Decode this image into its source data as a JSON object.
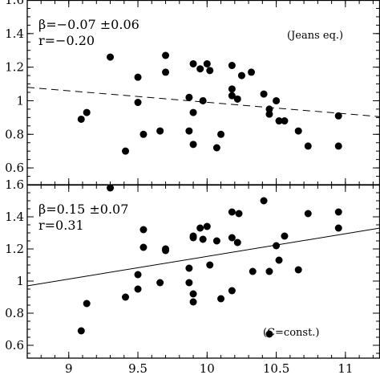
{
  "chart_data": [
    {
      "type": "scatter",
      "panel": "top",
      "annotations": {
        "beta": "β=−0.07 ±0.06",
        "r": "r=−0.20",
        "label": "(Jeans eq.)"
      },
      "xlim": [
        8.7,
        11.25
      ],
      "ylim": [
        0.5,
        1.6
      ],
      "yticks": [
        "0.6",
        "0.8",
        "1",
        "1.2",
        "1.4",
        "1.6"
      ],
      "xticks": [
        9,
        9.5,
        10,
        10.5,
        11
      ],
      "grid": false,
      "fit_line": {
        "style": "dashed",
        "points": [
          [
            8.7,
            1.08
          ],
          [
            11.25,
            0.905
          ]
        ]
      },
      "points": [
        [
          9.09,
          0.89
        ],
        [
          9.13,
          0.93
        ],
        [
          9.3,
          1.26
        ],
        [
          9.41,
          0.7
        ],
        [
          9.5,
          0.99
        ],
        [
          9.5,
          1.14
        ],
        [
          9.54,
          0.8
        ],
        [
          9.66,
          0.82
        ],
        [
          9.7,
          1.17
        ],
        [
          9.7,
          1.27
        ],
        [
          9.87,
          1.02
        ],
        [
          9.87,
          0.82
        ],
        [
          9.9,
          0.93
        ],
        [
          9.9,
          0.74
        ],
        [
          9.9,
          1.22
        ],
        [
          9.95,
          1.19
        ],
        [
          9.97,
          1.0
        ],
        [
          10.0,
          1.22
        ],
        [
          10.02,
          1.18
        ],
        [
          10.07,
          0.72
        ],
        [
          10.1,
          0.8
        ],
        [
          10.18,
          1.07
        ],
        [
          10.18,
          1.21
        ],
        [
          10.18,
          1.03
        ],
        [
          10.22,
          1.01
        ],
        [
          10.25,
          1.15
        ],
        [
          10.32,
          1.17
        ],
        [
          10.41,
          1.04
        ],
        [
          10.45,
          0.95
        ],
        [
          10.45,
          0.92
        ],
        [
          10.5,
          1.0
        ],
        [
          10.52,
          0.88
        ],
        [
          10.56,
          0.88
        ],
        [
          10.66,
          0.82
        ],
        [
          10.73,
          0.73
        ],
        [
          10.95,
          0.91
        ],
        [
          10.95,
          0.73
        ]
      ]
    },
    {
      "type": "scatter",
      "panel": "bottom",
      "annotations": {
        "beta": "β=0.15 ±0.07",
        "r": "r=0.31",
        "label": "(C=const.)"
      },
      "xlim": [
        8.7,
        11.25
      ],
      "ylim": [
        0.52,
        1.6
      ],
      "yticks": [
        "0.6",
        "0.8",
        "1",
        "1.2",
        "1.4",
        "1.6"
      ],
      "xtick_labels": [
        "9",
        "9.5",
        "10",
        "10.5",
        "11"
      ],
      "xticks": [
        9,
        9.5,
        10,
        10.5,
        11
      ],
      "grid": false,
      "fit_line": {
        "style": "solid",
        "points": [
          [
            8.7,
            0.97
          ],
          [
            11.25,
            1.33
          ]
        ]
      },
      "points": [
        [
          9.09,
          0.69
        ],
        [
          9.13,
          0.86
        ],
        [
          9.3,
          1.58
        ],
        [
          9.41,
          0.9
        ],
        [
          9.5,
          0.95
        ],
        [
          9.5,
          1.04
        ],
        [
          9.54,
          1.32
        ],
        [
          9.54,
          1.21
        ],
        [
          9.66,
          0.99
        ],
        [
          9.7,
          1.19
        ],
        [
          9.7,
          1.2
        ],
        [
          9.87,
          1.08
        ],
        [
          9.87,
          0.99
        ],
        [
          9.9,
          0.92
        ],
        [
          9.9,
          0.87
        ],
        [
          9.9,
          1.28
        ],
        [
          9.9,
          1.27
        ],
        [
          9.95,
          1.33
        ],
        [
          9.97,
          1.26
        ],
        [
          10.0,
          1.34
        ],
        [
          10.02,
          1.1
        ],
        [
          10.07,
          1.25
        ],
        [
          10.1,
          0.89
        ],
        [
          10.18,
          1.43
        ],
        [
          10.18,
          1.27
        ],
        [
          10.18,
          0.94
        ],
        [
          10.22,
          1.24
        ],
        [
          10.23,
          1.42
        ],
        [
          10.33,
          1.06
        ],
        [
          10.41,
          1.5
        ],
        [
          10.45,
          1.06
        ],
        [
          10.5,
          1.22
        ],
        [
          10.52,
          1.13
        ],
        [
          10.56,
          1.28
        ],
        [
          10.45,
          0.67
        ],
        [
          10.66,
          1.07
        ],
        [
          10.73,
          1.42
        ],
        [
          10.95,
          1.43
        ],
        [
          10.95,
          1.33
        ]
      ]
    }
  ]
}
